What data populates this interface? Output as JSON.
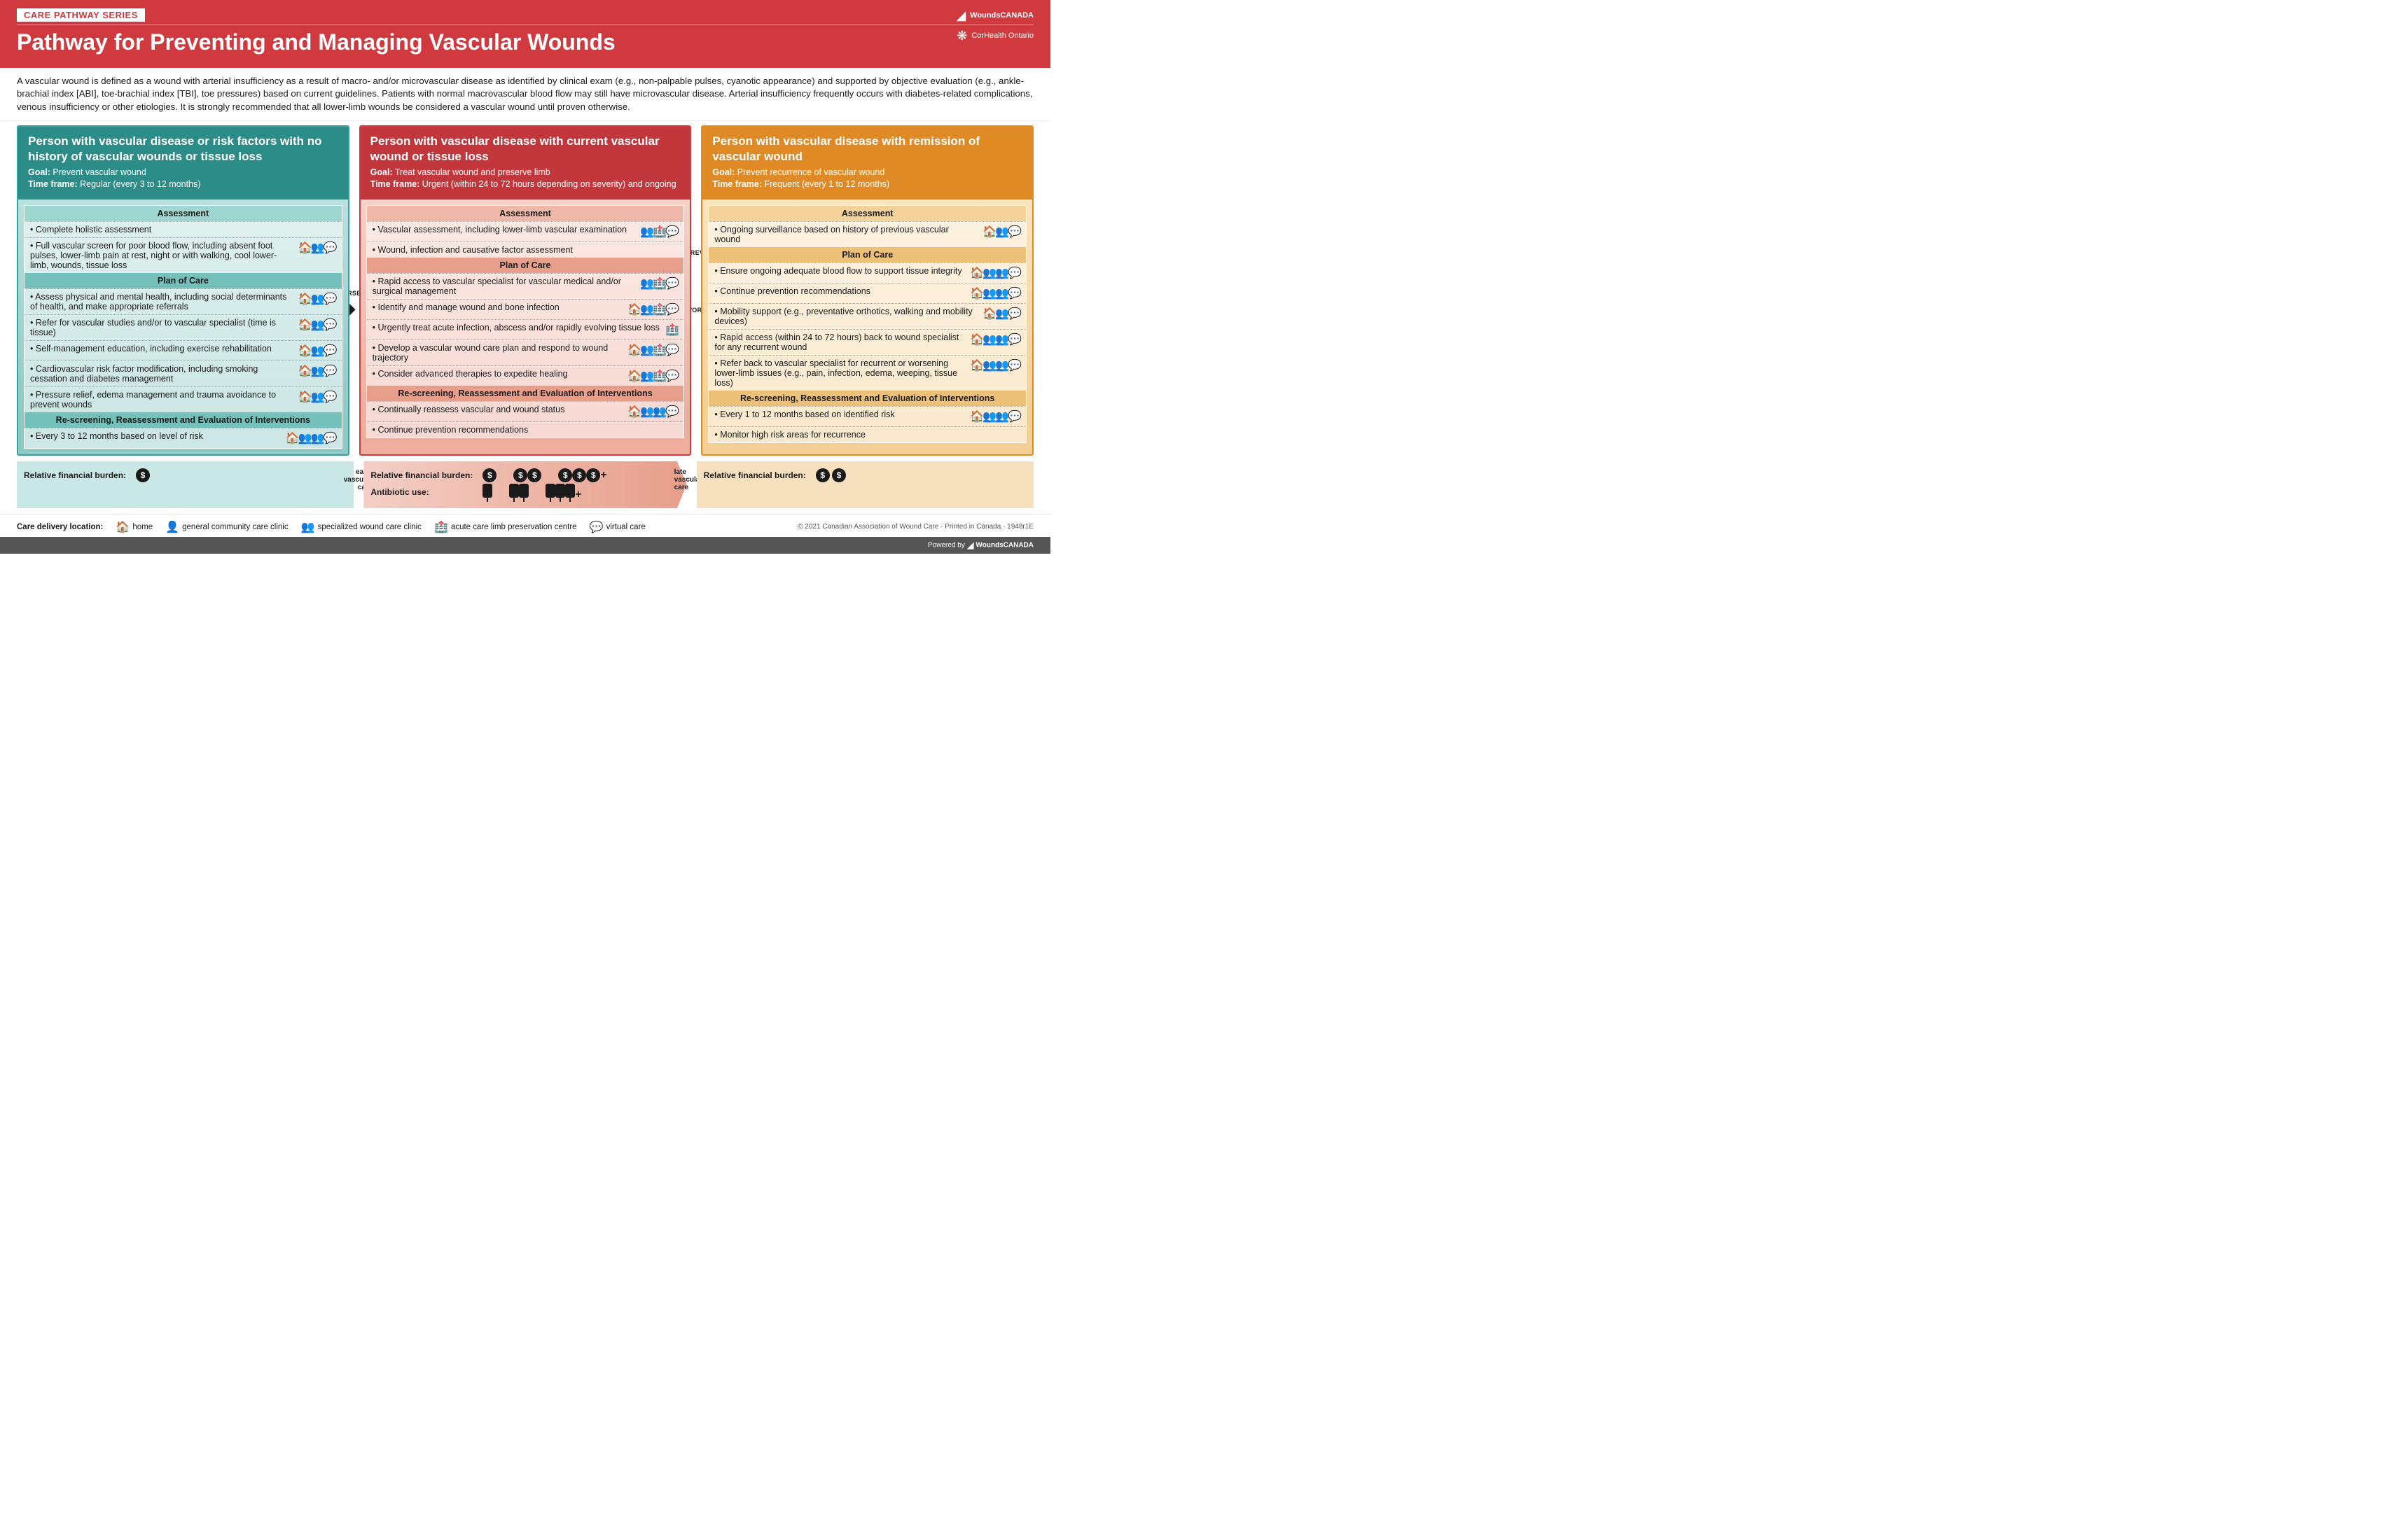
{
  "header": {
    "series_tag": "CARE PATHWAY SERIES",
    "title": "Pathway for Preventing and Managing Vascular Wounds",
    "logo1_text": "WoundsCANADA",
    "logo2_text": "CorHealth Ontario"
  },
  "intro": "A vascular wound is defined as a wound with arterial insufficiency as a result of macro- and/or microvascular disease as identified by clinical exam (e.g., non-palpable pulses, cyanotic appearance) and supported by objective evaluation (e.g., ankle-brachial index [ABI], toe-brachial index [TBI], toe pressures) based on current guidelines. Patients with normal macrovascular blood flow may still have microvascular disease. Arterial insufficiency frequently occurs with diabetes-related complications, venous insufficiency or other etiologies. It is strongly recommended that all lower-limb wounds be considered a vascular wound until proven otherwise.",
  "icons": {
    "home": "🏠",
    "person": "👤",
    "group": "👥",
    "hospital": "🏥",
    "chat": "💬"
  },
  "columns": [
    {
      "key": "teal",
      "title": "Person with vascular disease or risk factors with no history of vascular wounds or tissue loss",
      "goal": "Prevent vascular wound",
      "timeframe": "Regular (every 3 to 12 months)",
      "sections": [
        {
          "heading": "Assessment",
          "major": false,
          "rows": [
            {
              "text": "Complete holistic assessment",
              "icons": ""
            },
            {
              "text": "Full vascular screen for poor blood flow, including absent foot pulses, lower-limb pain at rest, night or with walking, cool lower-limb, wounds, tissue loss",
              "icons": "home,group,chat"
            }
          ]
        },
        {
          "heading": "Plan of Care",
          "major": true,
          "rows": [
            {
              "text": "Assess physical and mental health, including social determinants of health, and make appropriate referrals",
              "icons": "home,group,chat"
            },
            {
              "text": "Refer for vascular studies and/or to vascular specialist (time is tissue)",
              "icons": "home,group,chat"
            },
            {
              "text": "Self-management education, including exercise rehabilitation",
              "icons": "home,group,chat"
            },
            {
              "text": "Cardiovascular risk factor modification, including smoking cessation and diabetes management",
              "icons": "home,group,chat"
            },
            {
              "text": "Pressure relief, edema management and trauma avoidance to prevent wounds",
              "icons": "home,group,chat"
            }
          ]
        },
        {
          "heading": "Re-screening, Reassessment and Evaluation of Interventions",
          "major": true,
          "rows": [
            {
              "text": "Every 3 to 12 months based on level of risk",
              "icons": "home,group,group,chat"
            }
          ]
        }
      ]
    },
    {
      "key": "red",
      "title": "Person with vascular disease with current vascular wound or tissue loss",
      "goal": "Treat vascular wound and preserve limb",
      "timeframe": "Urgent (within 24 to 72 hours depending on severity) and ongoing",
      "sections": [
        {
          "heading": "Assessment",
          "major": false,
          "rows": [
            {
              "text": "Vascular assessment, including lower-limb vascular examination",
              "icons": "group,hospital,chat"
            },
            {
              "text": "Wound, infection and causative factor assessment",
              "icons": ""
            }
          ]
        },
        {
          "heading": "Plan of Care",
          "major": true,
          "rows": [
            {
              "text": "Rapid access to vascular specialist for vascular medical and/or surgical management",
              "icons": "group,hospital,chat"
            },
            {
              "text": "Identify and manage wound and bone infection",
              "icons": "home,group,hospital,chat"
            },
            {
              "text": "Urgently treat acute infection, abscess and/or rapidly evolving tissue loss",
              "icons": "hospital"
            },
            {
              "text": "Develop a vascular wound care plan and respond to wound trajectory",
              "icons": "home,group,hospital,chat"
            },
            {
              "text": "Consider advanced therapies to expedite healing",
              "icons": "home,group,hospital,chat"
            }
          ]
        },
        {
          "heading": "Re-screening, Reassessment and Evaluation of Interventions",
          "major": true,
          "rows": [
            {
              "text": "Continually reassess vascular and wound status",
              "icons": "home,group,group,chat"
            },
            {
              "text": "Continue prevention recommendations",
              "icons": ""
            }
          ]
        }
      ]
    },
    {
      "key": "orange",
      "title": "Person with vascular disease with remission of vascular wound",
      "goal": "Prevent recurrence of vascular wound",
      "timeframe": "Frequent (every 1 to 12 months)",
      "sections": [
        {
          "heading": "Assessment",
          "major": false,
          "rows": [
            {
              "text": "Ongoing surveillance based on history of previous vascular wound",
              "icons": "home,group,chat"
            }
          ]
        },
        {
          "heading": "Plan of Care",
          "major": true,
          "rows": [
            {
              "text": "Ensure ongoing adequate blood flow to support tissue integrity",
              "icons": "home,group,group,chat"
            },
            {
              "text": "Continue prevention recommendations",
              "icons": "home,group,group,chat"
            },
            {
              "text": "Mobility support (e.g., preventative orthotics, walking and mobility devices)",
              "icons": "home,group,chat"
            },
            {
              "text": "Rapid access (within 24 to 72 hours) back to wound specialist for any recurrent wound",
              "icons": "home,group,group,chat"
            },
            {
              "text": "Refer back to vascular specialist for recurrent or worsening lower-limb issues (e.g., pain, infection, edema, weeping, tissue loss)",
              "icons": "home,group,group,chat"
            }
          ]
        },
        {
          "heading": "Re-screening, Reassessment and Evaluation of Interventions",
          "major": true,
          "rows": [
            {
              "text": "Every 1 to 12 months based on identified risk",
              "icons": "home,group,group,chat"
            },
            {
              "text": "Monitor high risk areas for recurrence",
              "icons": ""
            }
          ]
        }
      ]
    }
  ],
  "arrows": {
    "worsening1": "WORSENING CONDITION",
    "preventative": "PREVENTATIVE STEPS",
    "worsening2": "WORSENING CONDITION"
  },
  "burden": {
    "label": "Relative financial burden:",
    "antibiotic_label": "Antibiotic use:",
    "teal_cost": 1,
    "orange_cost": 2,
    "mid_costs": [
      1,
      2,
      3
    ],
    "mid_abx": [
      1,
      2,
      3
    ],
    "show_plus": true,
    "early_label": "early vascular care",
    "late_label": "late vascular care"
  },
  "legend": {
    "title": "Care delivery location:",
    "items": [
      {
        "icon": "home",
        "label": "home"
      },
      {
        "icon": "person",
        "label": "general community care clinic"
      },
      {
        "icon": "group",
        "label": "specialized wound care clinic"
      },
      {
        "icon": "hospital",
        "label": "acute care limb preservation centre"
      },
      {
        "icon": "chat",
        "label": "virtual care"
      }
    ],
    "copyright": "© 2021 Canadian Association of Wound Care · Printed in Canada · 1948r1E"
  },
  "footer": {
    "powered": "Powered by",
    "brand": "WoundsCANADA"
  },
  "colors": {
    "brand_red": "#d03a3f",
    "teal": "#2c8c87",
    "orange": "#df8a24"
  }
}
